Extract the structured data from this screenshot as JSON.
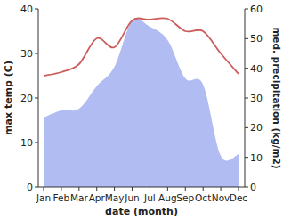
{
  "chart_data": {
    "type": "line",
    "categories": [
      "Jan",
      "Feb",
      "Mar",
      "Apr",
      "May",
      "Jun",
      "Jul",
      "Aug",
      "Sep",
      "Oct",
      "Nov",
      "Dec"
    ],
    "x_label": "date (month)",
    "y_label": "max temp (C)",
    "y2_label": "med. precipitation (kg/m2)",
    "ylim": [
      0,
      40
    ],
    "yticks": [
      0,
      10,
      20,
      30,
      40
    ],
    "y2lim": [
      0,
      60
    ],
    "y2ticks": [
      0,
      10,
      20,
      30,
      40,
      50,
      60
    ],
    "grid": false,
    "series": [
      {
        "name": "max temp (C)",
        "type": "line",
        "color": "#cd5c5c",
        "values": [
          25,
          25.8,
          27.6,
          33.4,
          31.4,
          37.4,
          37.6,
          37.8,
          35,
          35,
          30,
          25.4
        ]
      },
      {
        "name": "med. precipitation (kg/m2)",
        "type": "area",
        "axis": "y2",
        "color": "#b0bcf2",
        "values": [
          23.4,
          25.8,
          26.4,
          34,
          40.5,
          56,
          54,
          49.5,
          36.6,
          34.5,
          10.5,
          11
        ]
      }
    ]
  }
}
